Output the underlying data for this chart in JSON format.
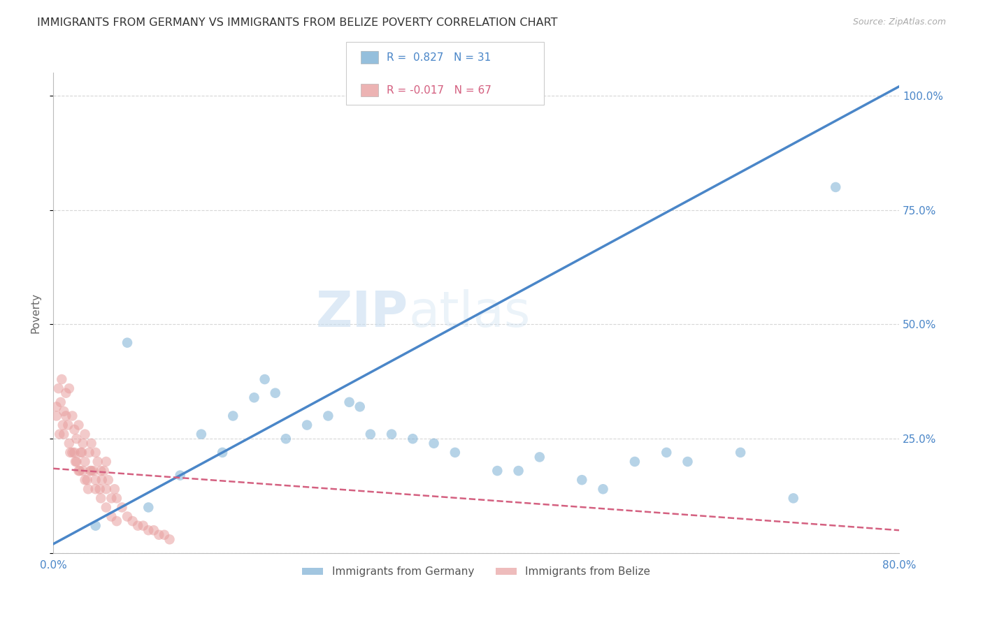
{
  "title": "IMMIGRANTS FROM GERMANY VS IMMIGRANTS FROM BELIZE POVERTY CORRELATION CHART",
  "source": "Source: ZipAtlas.com",
  "ylabel": "Poverty",
  "xlim": [
    0,
    0.8
  ],
  "ylim": [
    0,
    1.05
  ],
  "ytick_vals": [
    0,
    0.25,
    0.5,
    0.75,
    1.0
  ],
  "ytick_labels_right": [
    "",
    "25.0%",
    "50.0%",
    "75.0%",
    "100.0%"
  ],
  "xtick_vals": [
    0.0,
    0.1,
    0.2,
    0.3,
    0.4,
    0.5,
    0.6,
    0.7,
    0.8
  ],
  "xtick_labels": [
    "0.0%",
    "",
    "",
    "",
    "",
    "",
    "",
    "",
    "80.0%"
  ],
  "germany_color": "#7bafd4",
  "belize_color": "#e8a0a0",
  "germany_line_color": "#4a86c8",
  "belize_line_color": "#d46080",
  "legend_r_germany": "0.827",
  "legend_n_germany": "31",
  "legend_r_belize": "-0.017",
  "legend_n_belize": "67",
  "watermark_zip": "ZIP",
  "watermark_atlas": "atlas",
  "background_color": "#ffffff",
  "germany_line_x0": 0.0,
  "germany_line_y0": 0.02,
  "germany_line_x1": 0.8,
  "germany_line_y1": 1.02,
  "belize_line_x0": 0.0,
  "belize_line_y0": 0.185,
  "belize_line_x1": 0.8,
  "belize_line_y1": 0.05,
  "germany_scatter_x": [
    0.07,
    0.14,
    0.17,
    0.19,
    0.21,
    0.24,
    0.26,
    0.29,
    0.32,
    0.09,
    0.12,
    0.22,
    0.28,
    0.34,
    0.38,
    0.42,
    0.46,
    0.5,
    0.55,
    0.6,
    0.65,
    0.7,
    0.04,
    0.16,
    0.3,
    0.36,
    0.44,
    0.52,
    0.58,
    0.74,
    0.2
  ],
  "germany_scatter_y": [
    0.46,
    0.26,
    0.3,
    0.34,
    0.35,
    0.28,
    0.3,
    0.32,
    0.26,
    0.1,
    0.17,
    0.25,
    0.33,
    0.25,
    0.22,
    0.18,
    0.21,
    0.16,
    0.2,
    0.2,
    0.22,
    0.12,
    0.06,
    0.22,
    0.26,
    0.24,
    0.18,
    0.14,
    0.22,
    0.8,
    0.38
  ],
  "belize_scatter_x": [
    0.003,
    0.005,
    0.007,
    0.008,
    0.01,
    0.01,
    0.012,
    0.014,
    0.015,
    0.016,
    0.018,
    0.02,
    0.02,
    0.022,
    0.022,
    0.024,
    0.025,
    0.026,
    0.028,
    0.028,
    0.03,
    0.03,
    0.032,
    0.034,
    0.035,
    0.036,
    0.038,
    0.04,
    0.04,
    0.042,
    0.044,
    0.045,
    0.046,
    0.048,
    0.05,
    0.05,
    0.052,
    0.055,
    0.058,
    0.06,
    0.065,
    0.07,
    0.075,
    0.08,
    0.085,
    0.09,
    0.095,
    0.1,
    0.105,
    0.11,
    0.003,
    0.006,
    0.009,
    0.012,
    0.015,
    0.018,
    0.021,
    0.024,
    0.027,
    0.03,
    0.033,
    0.036,
    0.04,
    0.045,
    0.05,
    0.055,
    0.06
  ],
  "belize_scatter_y": [
    0.3,
    0.36,
    0.33,
    0.38,
    0.31,
    0.26,
    0.35,
    0.28,
    0.36,
    0.22,
    0.3,
    0.27,
    0.22,
    0.25,
    0.2,
    0.28,
    0.18,
    0.22,
    0.24,
    0.18,
    0.26,
    0.2,
    0.16,
    0.22,
    0.18,
    0.24,
    0.18,
    0.22,
    0.16,
    0.2,
    0.14,
    0.18,
    0.16,
    0.18,
    0.2,
    0.14,
    0.16,
    0.12,
    0.14,
    0.12,
    0.1,
    0.08,
    0.07,
    0.06,
    0.06,
    0.05,
    0.05,
    0.04,
    0.04,
    0.03,
    0.32,
    0.26,
    0.28,
    0.3,
    0.24,
    0.22,
    0.2,
    0.18,
    0.22,
    0.16,
    0.14,
    0.18,
    0.14,
    0.12,
    0.1,
    0.08,
    0.07
  ]
}
